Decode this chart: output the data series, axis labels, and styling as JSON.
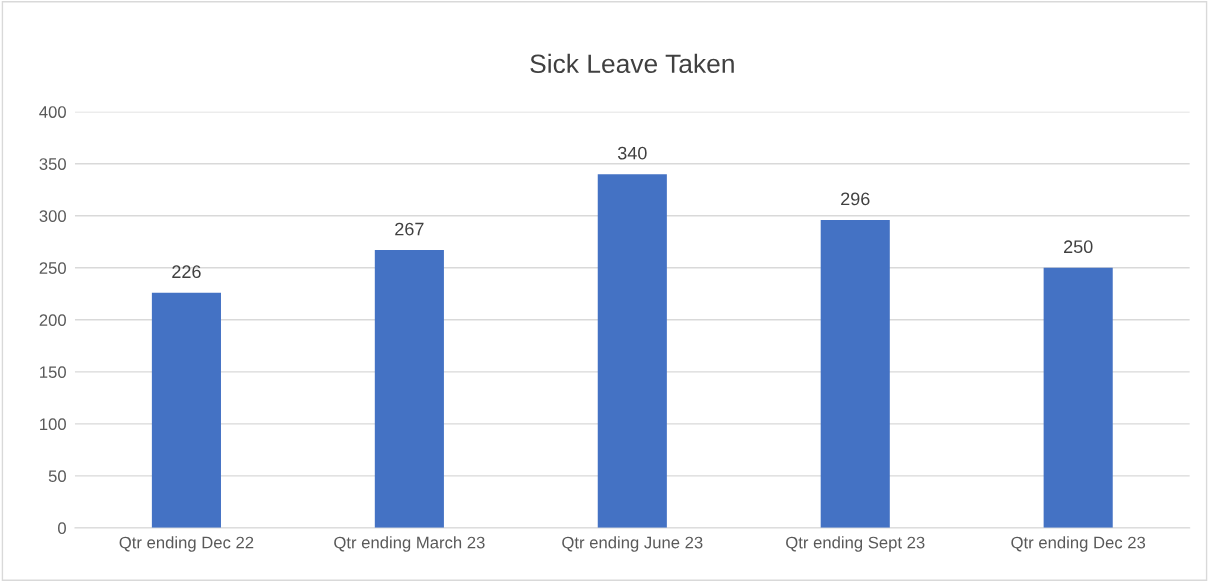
{
  "chart_data": {
    "type": "bar",
    "title": "Sick Leave Taken",
    "categories": [
      "Qtr ending Dec 22",
      "Qtr ending March 23",
      "Qtr ending June 23",
      "Qtr ending Sept 23",
      "Qtr ending Dec 23"
    ],
    "values": [
      226,
      267,
      340,
      296,
      250
    ],
    "color": "#4472c4",
    "ylim": [
      0,
      400
    ],
    "yticks": [
      0,
      50,
      100,
      150,
      200,
      250,
      300,
      350,
      400
    ],
    "grid": "y",
    "data_labels": true
  }
}
